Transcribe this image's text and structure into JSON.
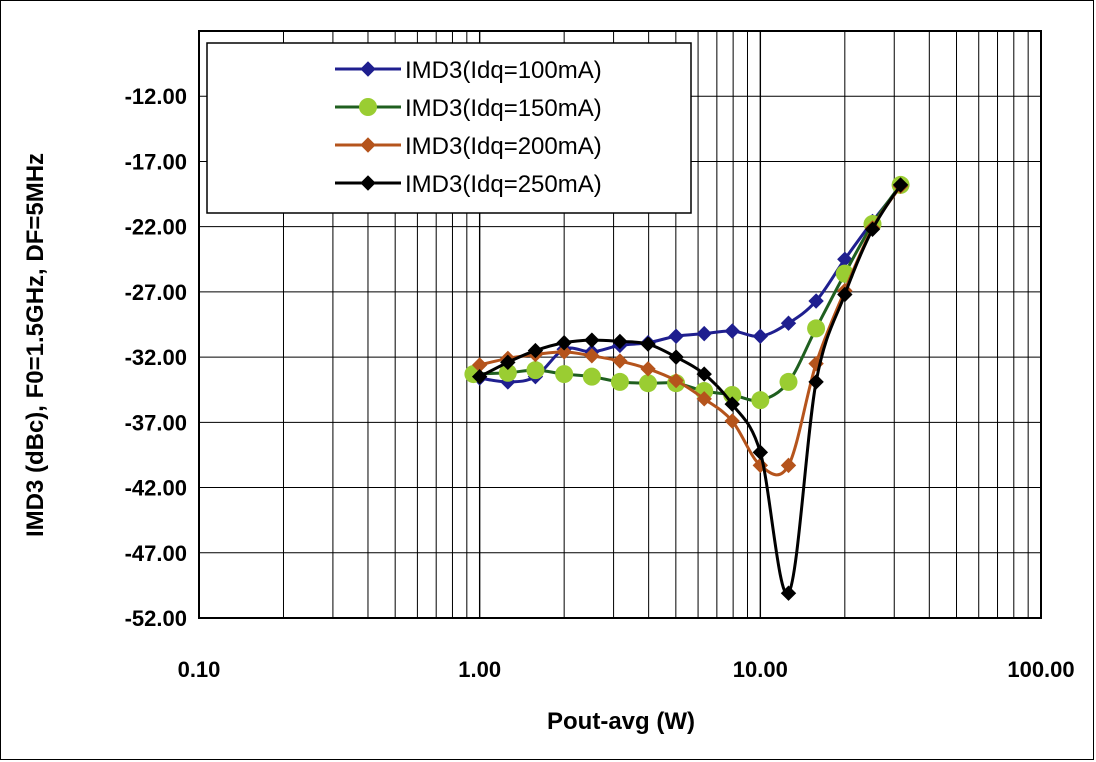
{
  "chart_data": {
    "type": "line",
    "xscale": "log",
    "xlim": [
      0.1,
      100
    ],
    "ylim": [
      -52,
      -7
    ],
    "x_ticks": [
      0.1,
      1,
      10,
      100
    ],
    "x_tick_labels": [
      "0.10",
      "1.00",
      "10.00",
      "100.00"
    ],
    "y_ticks": [
      -12,
      -17,
      -22,
      -27,
      -32,
      -37,
      -42,
      -47,
      -52
    ],
    "y_tick_labels": [
      "-12.00",
      "-17.00",
      "-22.00",
      "-27.00",
      "-32.00",
      "-37.00",
      "-42.00",
      "-47.00",
      "-52.00"
    ],
    "xlabel": "Pout-avg (W)",
    "ylabel": "IMD3 (dBc),  F0=1.5GHz,  DF=5MHz",
    "grid": true,
    "legend_position": "top-left",
    "series": [
      {
        "name": "IMD3(Idq=100mA)",
        "color": "#1f1f8f",
        "marker": "diamond",
        "x": [
          1.0,
          1.26,
          1.58,
          2.0,
          2.51,
          3.16,
          3.98,
          5.01,
          6.31,
          7.94,
          10.0,
          12.6,
          15.8,
          20.0,
          25.1,
          31.6
        ],
        "y": [
          -33.6,
          -33.9,
          -33.5,
          -31.4,
          -31.6,
          -31.1,
          -30.9,
          -30.4,
          -30.2,
          -30.0,
          -30.4,
          -29.4,
          -27.7,
          -24.5,
          -21.6,
          -18.9
        ]
      },
      {
        "name": "IMD3(Idq=150mA)",
        "color": "#9acd32",
        "line_color": "#1f5f1f",
        "marker": "circle",
        "x": [
          0.95,
          1.26,
          1.58,
          2.0,
          2.51,
          3.16,
          3.98,
          5.01,
          6.31,
          7.94,
          10.0,
          12.6,
          15.8,
          20.0,
          25.1,
          31.6
        ],
        "y": [
          -33.3,
          -33.2,
          -33.0,
          -33.3,
          -33.5,
          -33.9,
          -34.0,
          -34.0,
          -34.6,
          -34.9,
          -35.3,
          -33.9,
          -29.8,
          -25.6,
          -21.8,
          -18.8
        ]
      },
      {
        "name": "IMD3(Idq=200mA)",
        "color": "#b5541c",
        "marker": "diamond",
        "x": [
          1.0,
          1.26,
          1.58,
          2.0,
          2.51,
          3.16,
          3.98,
          5.01,
          6.31,
          7.94,
          10.0,
          12.6,
          15.8,
          20.0,
          25.1,
          31.6
        ],
        "y": [
          -32.6,
          -32.1,
          -31.8,
          -31.6,
          -31.9,
          -32.3,
          -32.9,
          -33.8,
          -35.2,
          -36.9,
          -40.3,
          -40.3,
          -32.5,
          -26.9,
          -22.1,
          -18.9
        ]
      },
      {
        "name": "IMD3(Idq=250mA)",
        "color": "#000000",
        "marker": "diamond",
        "x": [
          1.0,
          1.26,
          1.58,
          2.0,
          2.51,
          3.16,
          3.98,
          5.01,
          6.31,
          7.94,
          10.0,
          12.6,
          15.8,
          20.0,
          25.1,
          31.6
        ],
        "y": [
          -33.5,
          -32.4,
          -31.5,
          -30.9,
          -30.7,
          -30.8,
          -31.0,
          -32.0,
          -33.3,
          -35.6,
          -39.3,
          -50.1,
          -33.9,
          -27.2,
          -22.2,
          -18.8
        ]
      }
    ]
  }
}
